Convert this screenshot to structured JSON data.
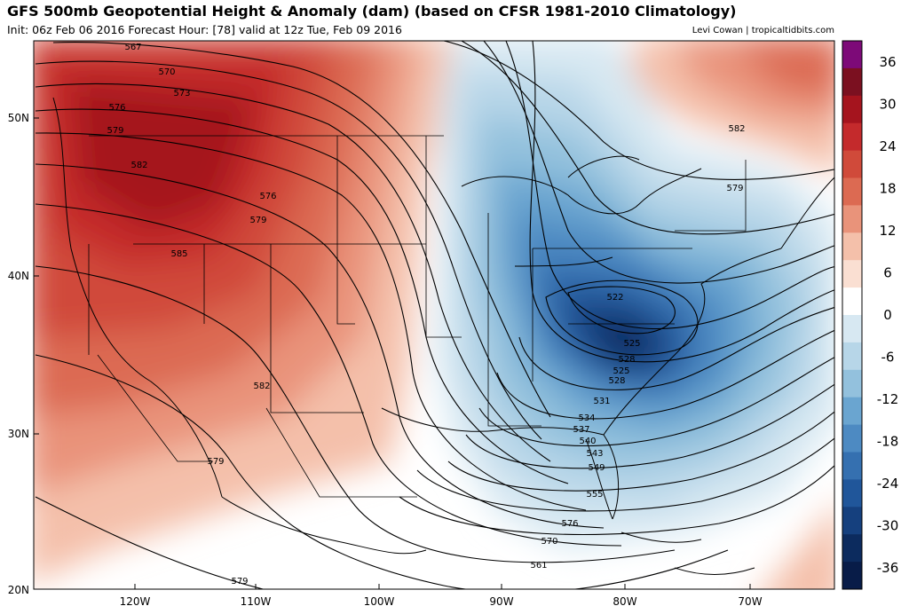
{
  "header": {
    "title": "GFS 500mb Geopotential Height & Anomaly (dam) (based on CFSR 1981-2010 Climatology)",
    "subtitle": "Init: 06z Feb 06 2016   Forecast Hour: [78]   valid at 12z Tue, Feb 09 2016",
    "credit": "Levi Cowan | tropicaltidbits.com"
  },
  "map": {
    "lat_labels": [
      "50N",
      "40N",
      "30N",
      "20N"
    ],
    "lon_labels": [
      "120W",
      "110W",
      "100W",
      "90W",
      "80W",
      "70W"
    ],
    "contour_labels": [
      "567",
      "570",
      "573",
      "576",
      "579",
      "582",
      "585",
      "576",
      "579",
      "582",
      "579",
      "579",
      "582",
      "579",
      "576",
      "570",
      "561",
      "555",
      "549",
      "543",
      "540",
      "537",
      "534",
      "531",
      "528",
      "525",
      "522",
      "525",
      "528"
    ]
  },
  "colorbar": {
    "ticks": [
      "36",
      "30",
      "24",
      "18",
      "12",
      "6",
      "0",
      "-6",
      "-12",
      "-18",
      "-24",
      "-30",
      "-36"
    ],
    "colors": [
      "#7d0a78",
      "#7b1020",
      "#a5141e",
      "#c42a2c",
      "#d04a3a",
      "#dc6a52",
      "#e9937a",
      "#f4c0aa",
      "#fadfd2",
      "#ffffff",
      "#d7e8f2",
      "#b7d6e8",
      "#93c1dd",
      "#6aa5d0",
      "#4d8ac2",
      "#3570b0",
      "#20569a",
      "#15407e",
      "#0c2b5e",
      "#081c48"
    ]
  }
}
